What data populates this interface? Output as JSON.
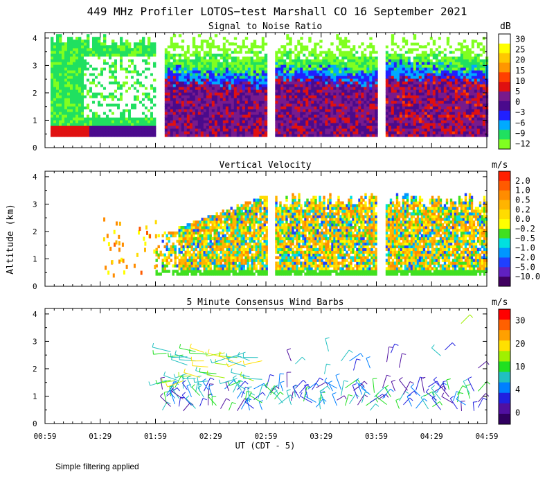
{
  "title": "449 MHz Profiler LOTOS−test Marshall CO 16 September 2021",
  "ylabel": "Altitude (km)",
  "xlabel": "UT  (CDT - 5)",
  "note": "Simple filtering applied",
  "x_ticks": [
    "00:59",
    "01:29",
    "01:59",
    "02:29",
    "02:59",
    "03:29",
    "03:59",
    "04:29",
    "04:59"
  ],
  "y_ticks": [
    "0",
    "1",
    "2",
    "3",
    "4"
  ],
  "chart_data": [
    {
      "type": "heatmap",
      "title": "Signal to Noise Ratio",
      "units": "dB",
      "x_range": [
        "00:59",
        "04:59"
      ],
      "y_range_km": [
        0,
        4.2
      ],
      "colorbar_labels": [
        "30",
        "25",
        "20",
        "15",
        "10",
        "5",
        "0",
        "−3",
        "−6",
        "−9",
        "−12"
      ],
      "colorbar_colors": [
        "#ffffff",
        "#ffff00",
        "#ffc800",
        "#ff9600",
        "#ff4000",
        "#e01010",
        "#781a8c",
        "#4a0a8c",
        "#2020ff",
        "#00aaff",
        "#20e060",
        "#80ff20"
      ],
      "data_segments_UT": [
        [
          "01:02",
          "01:59"
        ],
        [
          "02:04",
          "02:59"
        ],
        [
          "03:04",
          "03:59"
        ],
        [
          "04:04",
          "04:59"
        ]
      ]
    },
    {
      "type": "heatmap",
      "title": "Vertical Velocity",
      "units": "m/s",
      "x_range": [
        "00:59",
        "04:59"
      ],
      "y_range_km": [
        0,
        4.2
      ],
      "colorbar_labels": [
        "2.0",
        "1.0",
        "0.5",
        "0.2",
        "0.0",
        "−0.2",
        "−0.5",
        "−1.0",
        "−2.0",
        "−5.0",
        "−10.0"
      ],
      "colorbar_colors": [
        "#ff2000",
        "#ff5a00",
        "#ff8c00",
        "#ffb400",
        "#ffdc00",
        "#ffff00",
        "#40e020",
        "#00e0e0",
        "#0096ff",
        "#2040ff",
        "#6020c0",
        "#400060"
      ]
    },
    {
      "type": "scatter",
      "title": "5 Minute Consensus Wind Barbs",
      "units": "m/s",
      "x_range": [
        "00:59",
        "04:59"
      ],
      "y_range_km": [
        0,
        4.2
      ],
      "colorbar_labels": [
        "30",
        "20",
        "10",
        "4",
        "0"
      ],
      "colorbar_colors": [
        "#ff0000",
        "#ff6000",
        "#ffa000",
        "#ffe000",
        "#a0f000",
        "#20e020",
        "#20c0c0",
        "#0080ff",
        "#2020e0",
        "#5010a0",
        "#300060"
      ]
    }
  ]
}
